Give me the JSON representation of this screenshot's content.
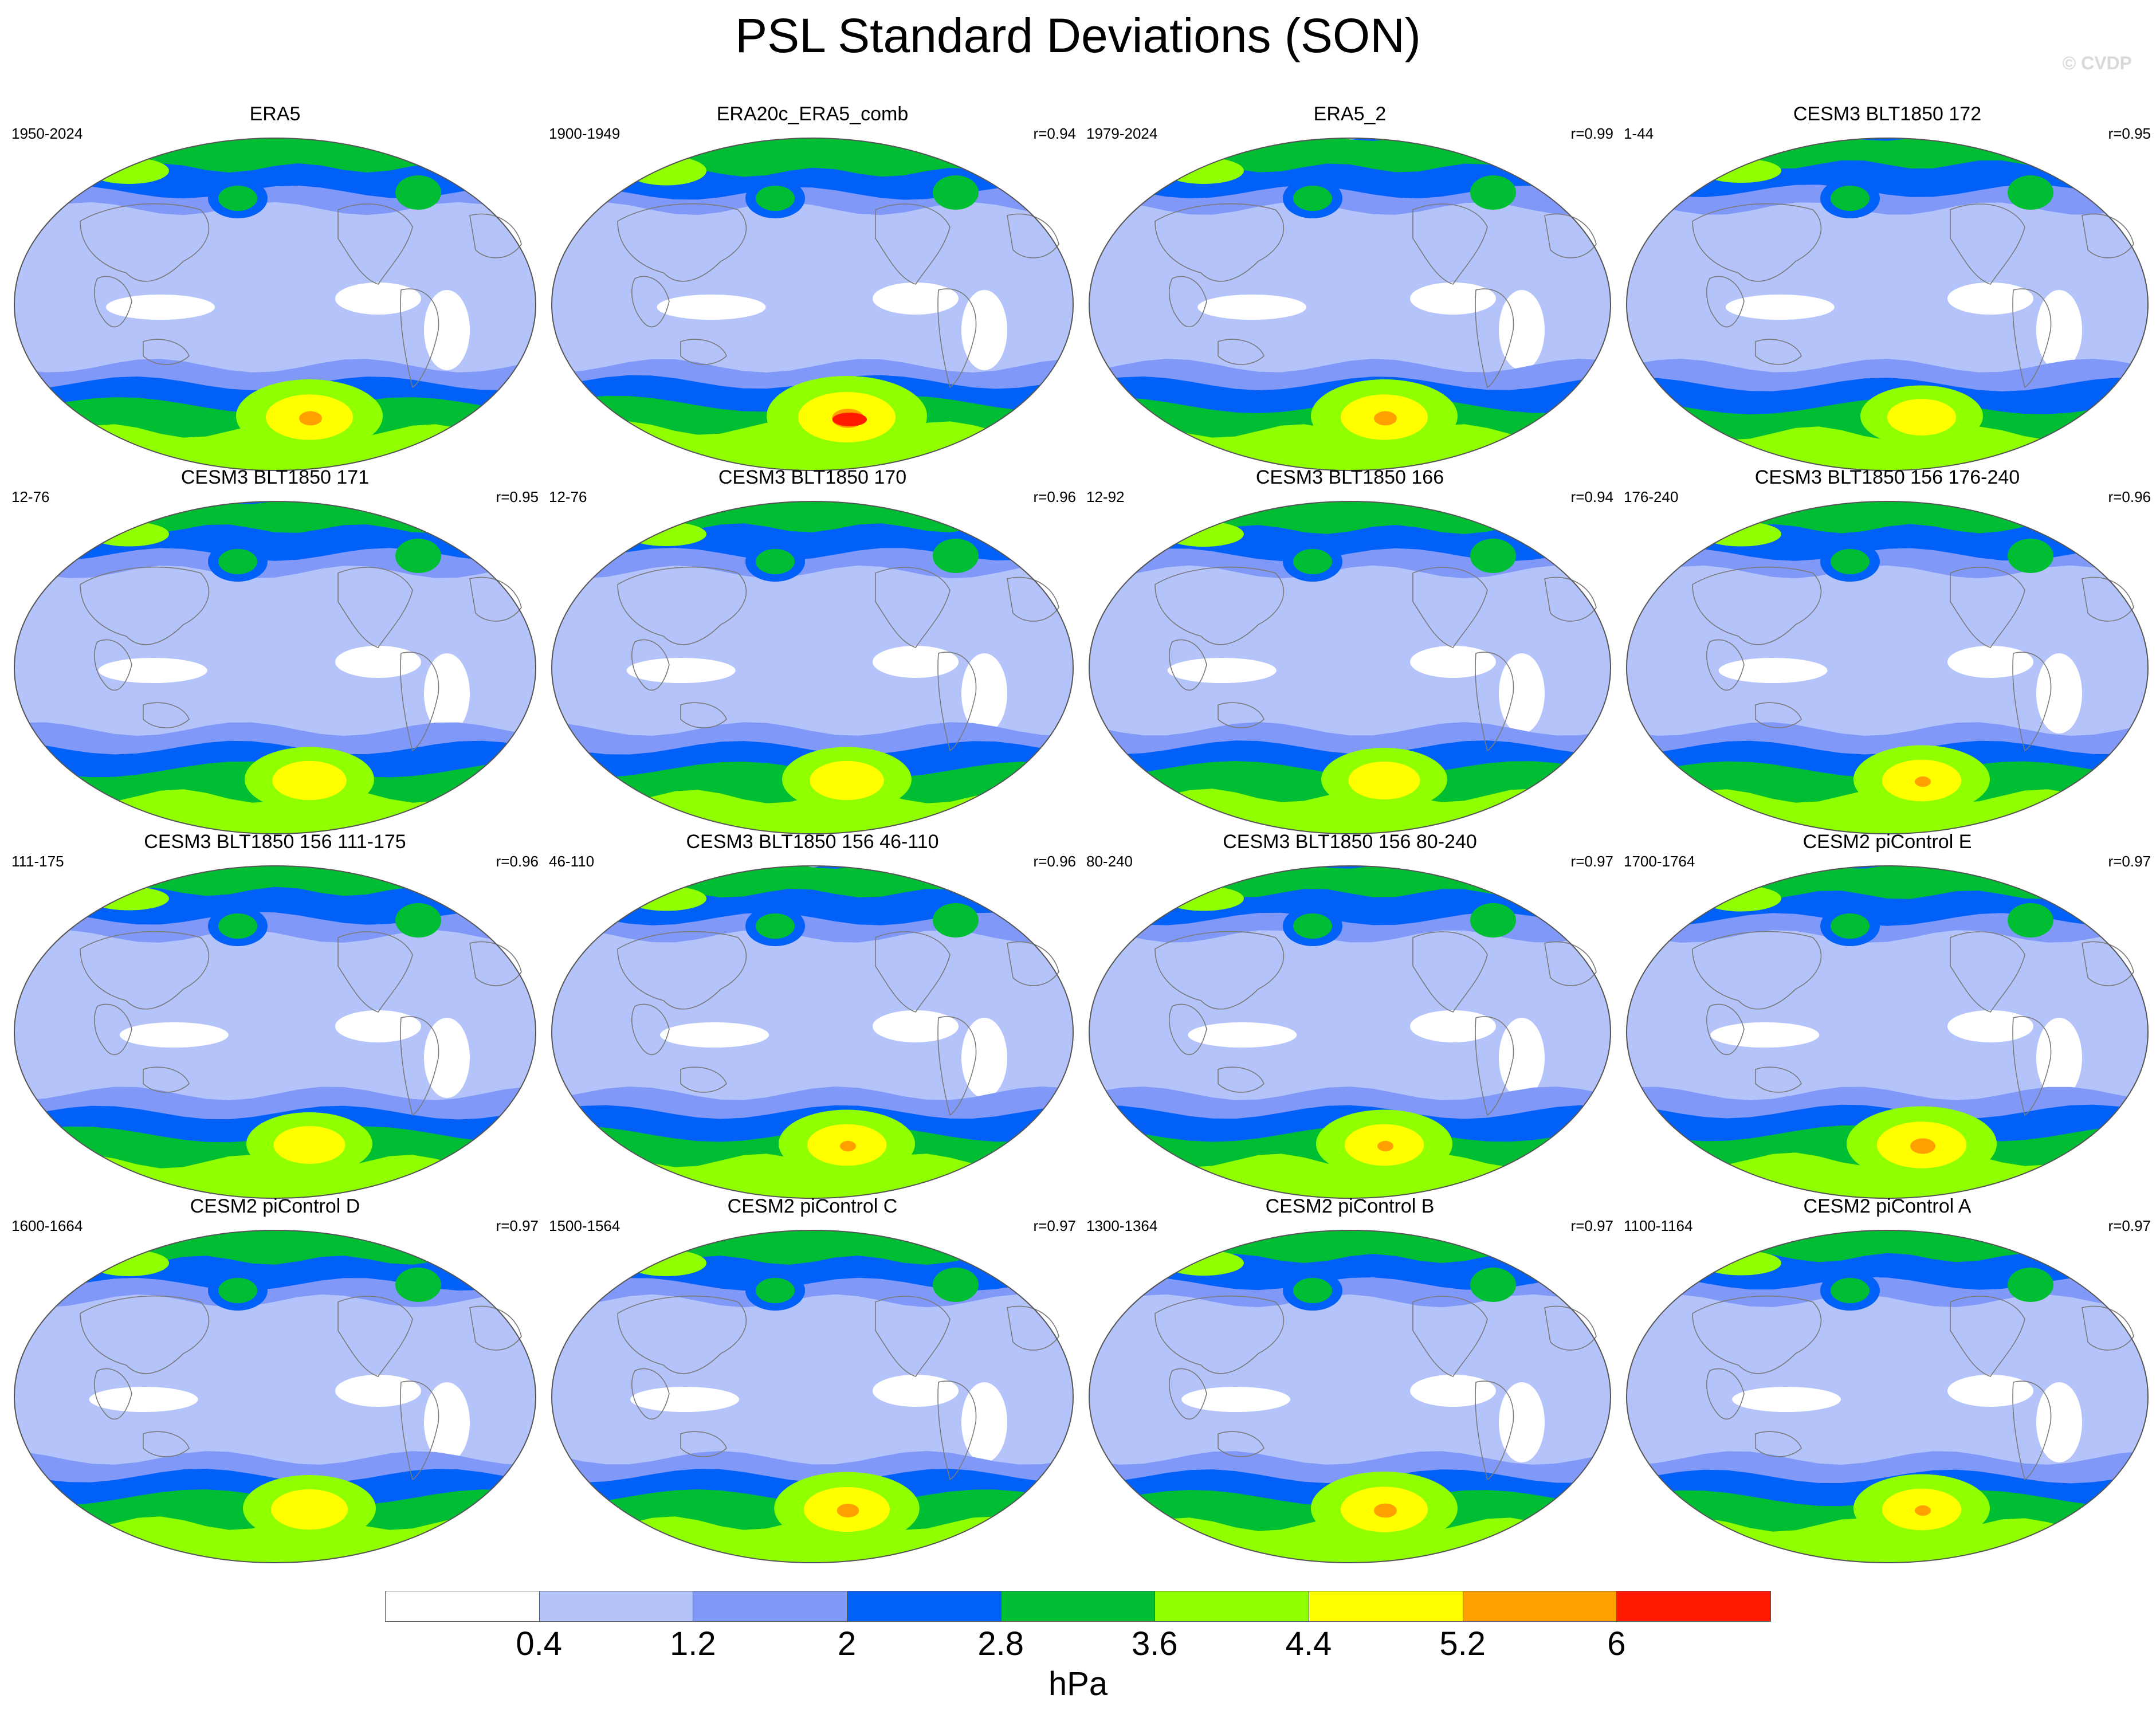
{
  "figure": {
    "title": "PSL Standard Deviations (SON)",
    "copyright": "© CVDP"
  },
  "panels": [
    {
      "title": "ERA5",
      "years": "1950-2024",
      "corr": "",
      "strength": 0.7,
      "blob": 0.8
    },
    {
      "title": "ERA20c_ERA5_comb",
      "years": "1900-1949",
      "corr": "r=0.94",
      "strength": 0.95,
      "blob": 1.0
    },
    {
      "title": "ERA5_2",
      "years": "1979-2024",
      "corr": "r=0.99",
      "strength": 0.7,
      "blob": 0.8
    },
    {
      "title": "CESM3 BLT1850 172",
      "years": "1-44",
      "corr": "r=0.95",
      "strength": 0.5,
      "blob": 0.45
    },
    {
      "title": "CESM3 BLT1850 171",
      "years": "12-76",
      "corr": "r=0.95",
      "strength": 0.55,
      "blob": 0.55
    },
    {
      "title": "CESM3 BLT1850 170",
      "years": "12-76",
      "corr": "r=0.96",
      "strength": 0.5,
      "blob": 0.55
    },
    {
      "title": "CESM3 BLT1850 166",
      "years": "12-92",
      "corr": "r=0.94",
      "strength": 0.6,
      "blob": 0.5
    },
    {
      "title": "CESM3 BLT1850 156 176-240",
      "years": "176-240",
      "corr": "r=0.96",
      "strength": 0.55,
      "blob": 0.65
    },
    {
      "title": "CESM3 BLT1850 156 111-175",
      "years": "111-175",
      "corr": "r=0.96",
      "strength": 0.45,
      "blob": 0.5
    },
    {
      "title": "CESM3 BLT1850 156 46-110",
      "years": "46-110",
      "corr": "r=0.96",
      "strength": 0.55,
      "blob": 0.65
    },
    {
      "title": "CESM3 BLT1850 156 80-240",
      "years": "80-240",
      "corr": "r=0.97",
      "strength": 0.55,
      "blob": 0.65
    },
    {
      "title": "CESM2 piControl E",
      "years": "1700-1764",
      "corr": "r=0.97",
      "strength": 0.65,
      "blob": 0.85
    },
    {
      "title": "CESM2 piControl D",
      "years": "1600-1664",
      "corr": "r=0.97",
      "strength": 0.7,
      "blob": 0.6
    },
    {
      "title": "CESM2 piControl C",
      "years": "1500-1564",
      "corr": "r=0.97",
      "strength": 0.7,
      "blob": 0.78
    },
    {
      "title": "CESM2 piControl B",
      "years": "1300-1364",
      "corr": "r=0.97",
      "strength": 0.6,
      "blob": 0.8
    },
    {
      "title": "CESM2 piControl A",
      "years": "1100-1164",
      "corr": "r=0.97",
      "strength": 0.55,
      "blob": 0.65
    }
  ],
  "colorbar": {
    "colors": [
      "#ffffff",
      "#b4c4fa",
      "#8098f8",
      "#0060f8",
      "#00be33",
      "#90ff00",
      "#ffff00",
      "#ffa000",
      "#ff1a00"
    ],
    "labels": [
      "0.4",
      "1.2",
      "2",
      "2.8",
      "3.6",
      "4.4",
      "5.2",
      "6"
    ],
    "units": "hPa"
  }
}
